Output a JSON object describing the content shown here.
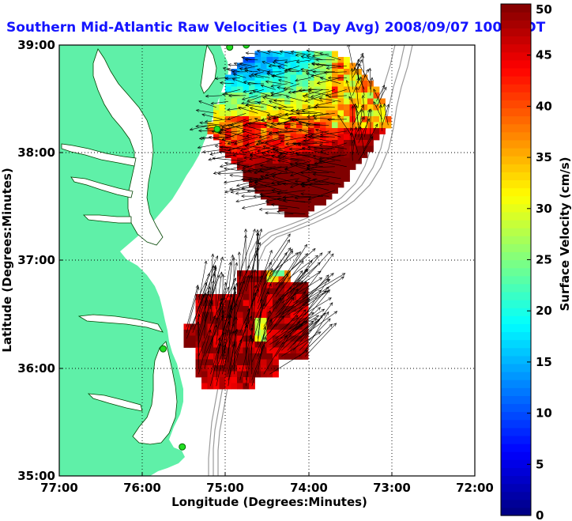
{
  "title": "Southern Mid-Atlantic Raw Velocities (1 Day Avg) 2008/09/07 1000 EDT",
  "x_axis": {
    "label": "Longitude (Degrees:Minutes)",
    "ticks": [
      "77:00",
      "76:00",
      "75:00",
      "74:00",
      "73:00",
      "72:00"
    ]
  },
  "y_axis": {
    "label": "Latitude (Degrees:Minutes)",
    "ticks": [
      "39:00",
      "38:00",
      "37:00",
      "36:00",
      "35:00"
    ]
  },
  "colorbar": {
    "label": "Surface Velocity (cm/s)",
    "ticks": [
      "50",
      "45",
      "40",
      "35",
      "30",
      "25",
      "20",
      "15",
      "10",
      "5",
      "0"
    ],
    "min": 0,
    "max": 50
  },
  "colors": {
    "land": "#5ff0a8",
    "water": "#ffffff",
    "title": "#1515ff",
    "bathymetry": "#9a9a9a",
    "station": "#22dd22"
  },
  "stations": [
    {
      "lon": -74.75,
      "lat": 39.0
    },
    {
      "lon": -74.95,
      "lat": 38.98
    },
    {
      "lon": -75.1,
      "lat": 38.22
    },
    {
      "lon": -75.75,
      "lat": 36.18
    },
    {
      "lon": -75.52,
      "lat": 35.27
    }
  ]
}
